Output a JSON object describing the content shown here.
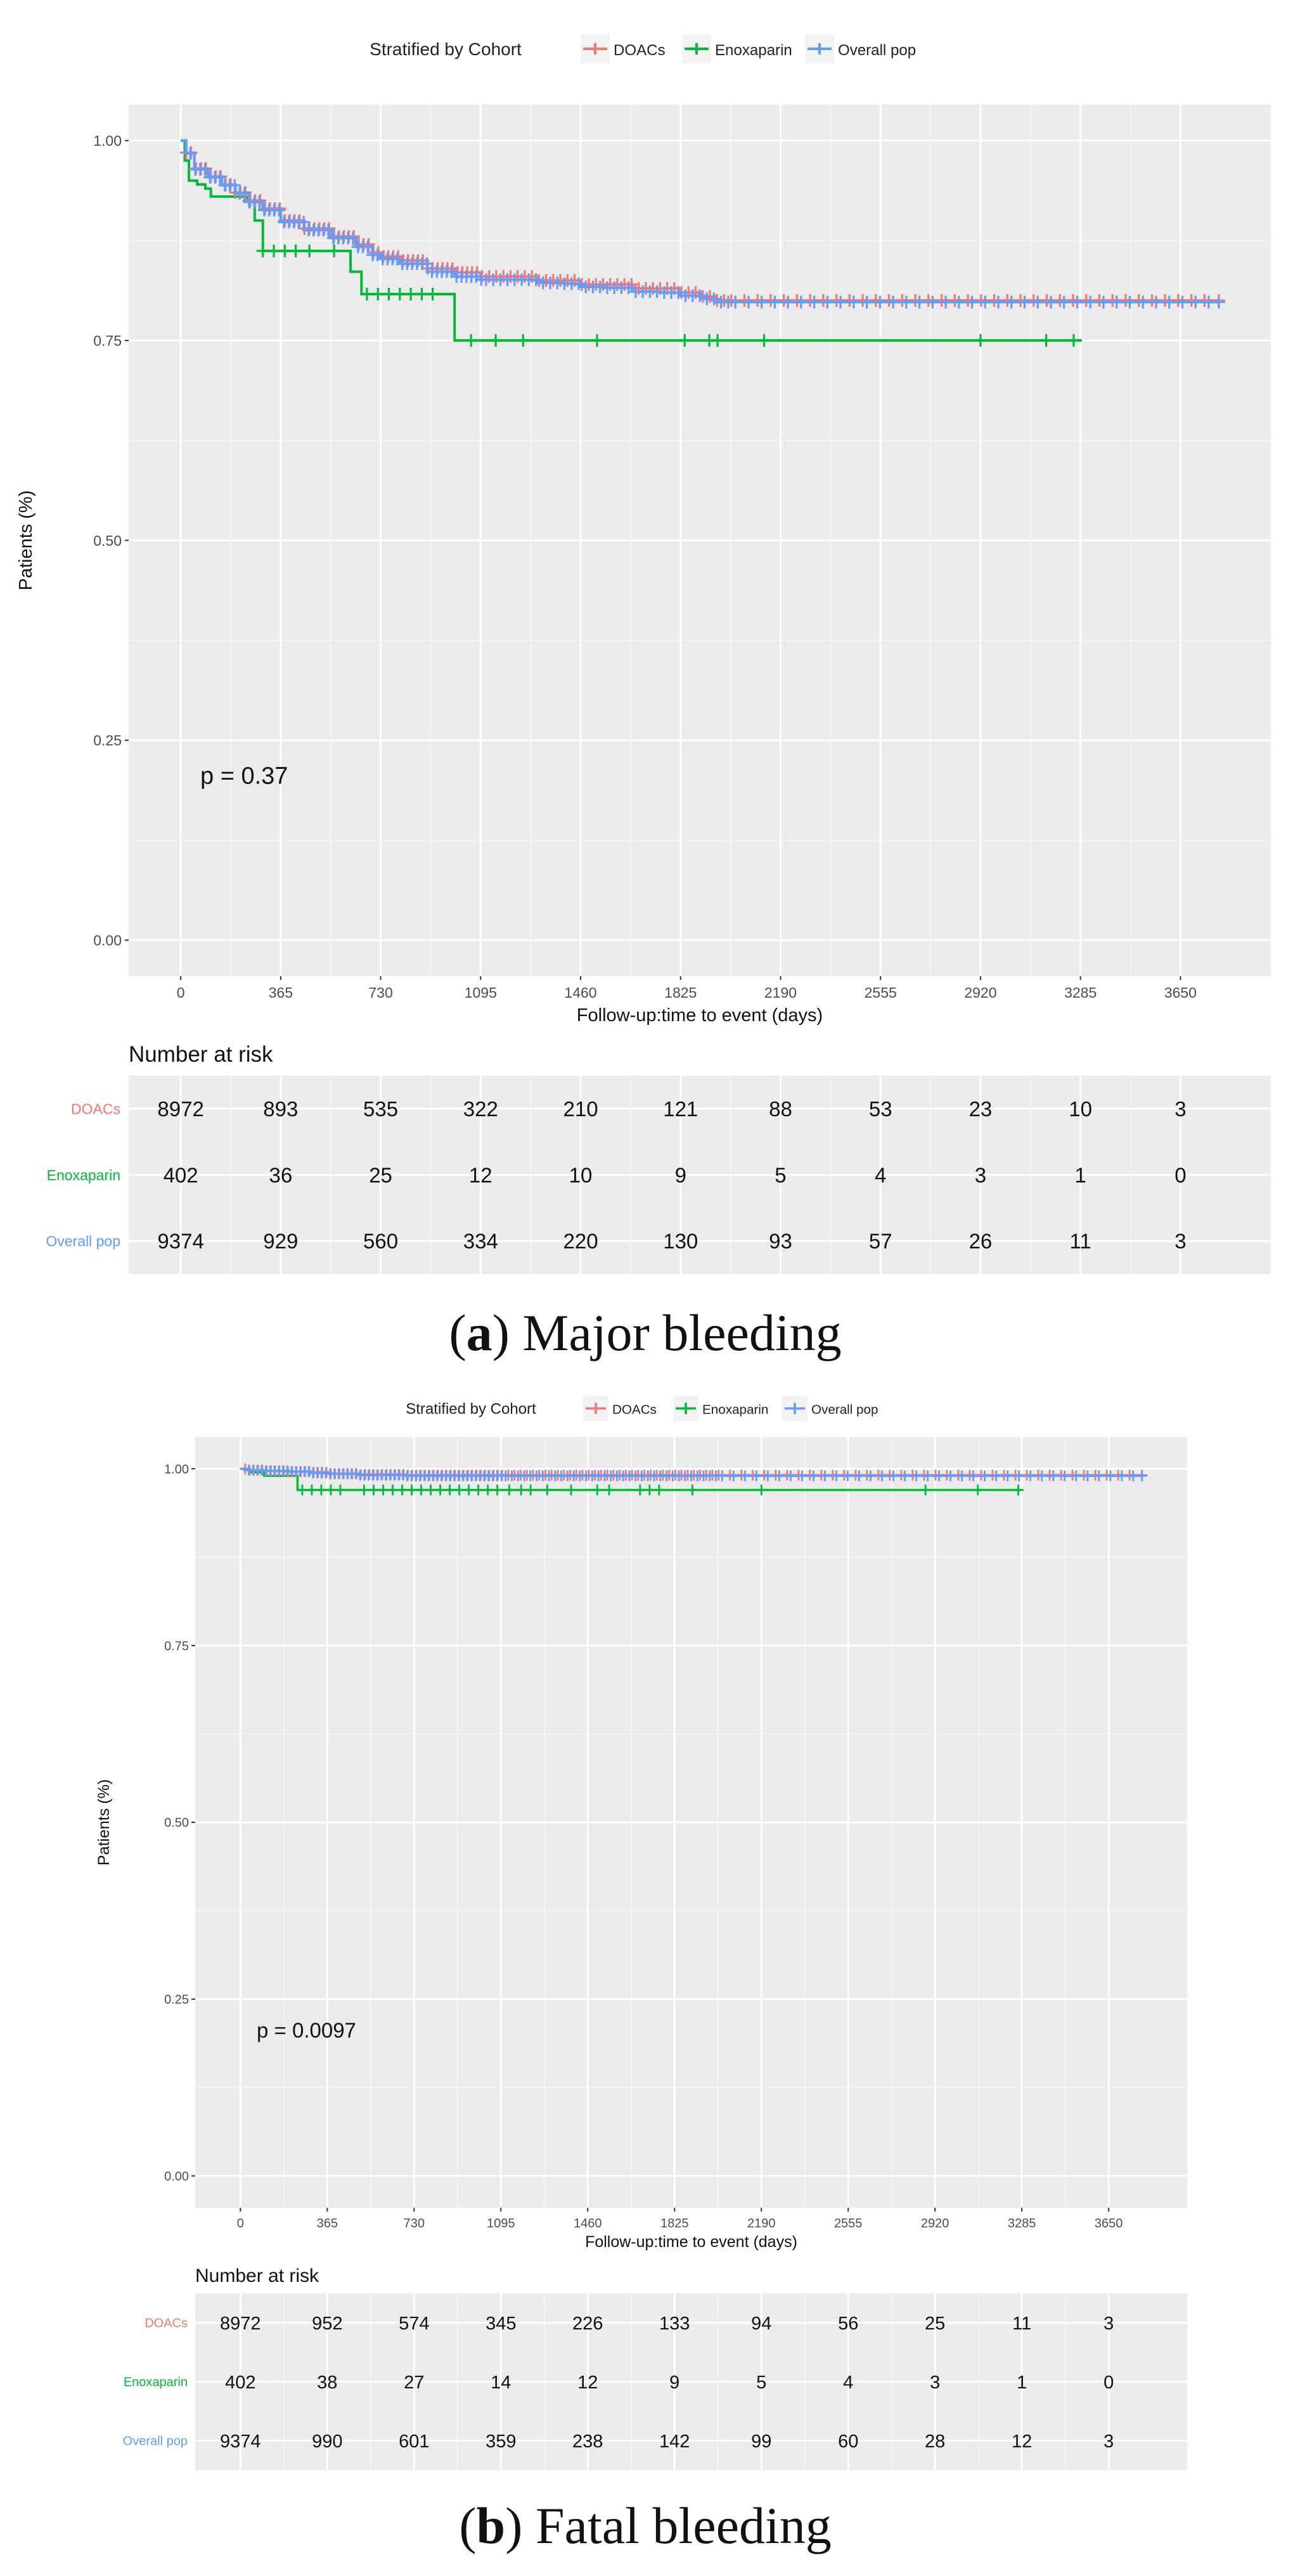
{
  "chart_data": [
    {
      "panel": "a",
      "type": "line",
      "legend_title": "Stratified by Cohort",
      "legend_placement": "top",
      "series": [
        {
          "name": "DOACs",
          "color": "#F8766D",
          "x": [
            0,
            20,
            50,
            100,
            150,
            200,
            250,
            300,
            365,
            450,
            550,
            640,
            700,
            730,
            800,
            900,
            1000,
            1095,
            1200,
            1300,
            1400,
            1460,
            1550,
            1650,
            1750,
            1825,
            1900,
            1950,
            2000,
            2190,
            2555,
            2920,
            3285,
            3650,
            3790
          ],
          "y": [
            1.0,
            0.985,
            0.965,
            0.955,
            0.945,
            0.935,
            0.925,
            0.915,
            0.9,
            0.89,
            0.88,
            0.87,
            0.86,
            0.855,
            0.85,
            0.84,
            0.835,
            0.83,
            0.83,
            0.825,
            0.825,
            0.82,
            0.82,
            0.815,
            0.815,
            0.81,
            0.805,
            0.8,
            0.8,
            0.8,
            0.8,
            0.8,
            0.8,
            0.8,
            0.8
          ]
        },
        {
          "name": "Enoxaparin",
          "color": "#00BA38",
          "x": [
            0,
            15,
            30,
            60,
            90,
            110,
            240,
            270,
            300,
            620,
            660,
            1000,
            3290
          ],
          "y": [
            1.0,
            0.975,
            0.95,
            0.945,
            0.94,
            0.93,
            0.925,
            0.9,
            0.862,
            0.836,
            0.808,
            0.75,
            0.75
          ]
        },
        {
          "name": "Overall pop",
          "color": "#619CFF",
          "x": [
            0,
            20,
            50,
            100,
            150,
            200,
            250,
            300,
            365,
            450,
            550,
            640,
            700,
            730,
            800,
            900,
            1000,
            1095,
            1200,
            1300,
            1400,
            1460,
            1550,
            1650,
            1750,
            1825,
            1900,
            1950,
            2000,
            2190,
            2555,
            2920,
            3285,
            3650,
            3790
          ],
          "y": [
            1.0,
            0.984,
            0.964,
            0.954,
            0.944,
            0.934,
            0.923,
            0.913,
            0.898,
            0.888,
            0.878,
            0.867,
            0.857,
            0.852,
            0.846,
            0.836,
            0.83,
            0.826,
            0.826,
            0.822,
            0.821,
            0.817,
            0.816,
            0.811,
            0.81,
            0.806,
            0.802,
            0.798,
            0.798,
            0.798,
            0.798,
            0.798,
            0.798,
            0.798,
            0.798
          ]
        }
      ],
      "censor_enoxaparin_x": [
        250,
        300,
        340,
        380,
        420,
        470,
        560,
        680,
        720,
        760,
        800,
        840,
        880,
        920,
        1060,
        1150,
        1250,
        1520,
        1840,
        1930,
        1960,
        2130,
        2920,
        3160,
        3260
      ],
      "xlabel": "Follow-up:time to event (days)",
      "ylabel": "Patients (%)",
      "xticks": [
        "0",
        "365",
        "730",
        "1095",
        "1460",
        "1825",
        "2190",
        "2555",
        "2920",
        "3285",
        "3650"
      ],
      "yticks": [
        "0.00",
        "0.25",
        "0.50",
        "0.75",
        "1.00"
      ],
      "xlim": [
        -190,
        3980
      ],
      "ylim": [
        -0.045,
        1.045
      ],
      "grid": true,
      "p_value": "p = 0.37",
      "risk_table": {
        "title": "Number at risk",
        "rows": [
          {
            "label": "DOACs",
            "color": "#F8766D",
            "values": [
              "8972",
              "893",
              "535",
              "322",
              "210",
              "121",
              "88",
              "53",
              "23",
              "10",
              "3"
            ]
          },
          {
            "label": "Enoxaparin",
            "color": "#00BA38",
            "values": [
              "402",
              "36",
              "25",
              "12",
              "10",
              "9",
              "5",
              "4",
              "3",
              "1",
              "0"
            ]
          },
          {
            "label": "Overall pop",
            "color": "#619CFF",
            "values": [
              "9374",
              "929",
              "560",
              "334",
              "220",
              "130",
              "93",
              "57",
              "26",
              "11",
              "3"
            ]
          }
        ]
      },
      "caption": {
        "open": "(",
        "bold": "a",
        "rest": ") Major bleeding"
      }
    },
    {
      "panel": "b",
      "type": "line",
      "legend_title": "Stratified by Cohort",
      "legend_placement": "top",
      "series": [
        {
          "name": "DOACs",
          "color": "#F8766D",
          "x": [
            0,
            30,
            100,
            200,
            300,
            365,
            500,
            700,
            1000,
            1500,
            2000,
            2500,
            3000,
            3500,
            3790
          ],
          "y": [
            1.0,
            0.998,
            0.997,
            0.996,
            0.995,
            0.993,
            0.992,
            0.991,
            0.991,
            0.991,
            0.991,
            0.991,
            0.991,
            0.991,
            0.991
          ]
        },
        {
          "name": "Enoxaparin",
          "color": "#00BA38",
          "x": [
            0,
            40,
            100,
            240,
            3280
          ],
          "y": [
            1.0,
            0.995,
            0.99,
            0.97,
            0.97
          ]
        },
        {
          "name": "Overall pop",
          "color": "#619CFF",
          "x": [
            0,
            30,
            100,
            200,
            300,
            365,
            500,
            700,
            1000,
            1500,
            2000,
            2500,
            3000,
            3500,
            3790
          ],
          "y": [
            1.0,
            0.998,
            0.997,
            0.996,
            0.994,
            0.993,
            0.991,
            0.99,
            0.99,
            0.99,
            0.99,
            0.99,
            0.99,
            0.99,
            0.99
          ]
        }
      ],
      "censor_enoxaparin_x": [
        260,
        300,
        340,
        380,
        420,
        520,
        560,
        600,
        640,
        680,
        720,
        760,
        800,
        840,
        880,
        920,
        960,
        1000,
        1040,
        1080,
        1130,
        1180,
        1220,
        1290,
        1390,
        1500,
        1550,
        1680,
        1720,
        1760,
        1900,
        2190,
        2880,
        3100,
        3270
      ],
      "xlabel": "Follow-up:time to event (days)",
      "ylabel": "Patients (%)",
      "xticks": [
        "0",
        "365",
        "730",
        "1095",
        "1460",
        "1825",
        "2190",
        "2555",
        "2920",
        "3285",
        "3650"
      ],
      "yticks": [
        "0.00",
        "0.25",
        "0.50",
        "0.75",
        "1.00"
      ],
      "xlim": [
        -190,
        3980
      ],
      "ylim": [
        -0.045,
        1.045
      ],
      "grid": true,
      "p_value": "p = 0.0097",
      "risk_table": {
        "title": "Number at risk",
        "rows": [
          {
            "label": "DOACs",
            "color": "#F8766D",
            "values": [
              "8972",
              "952",
              "574",
              "345",
              "226",
              "133",
              "94",
              "56",
              "25",
              "11",
              "3"
            ]
          },
          {
            "label": "Enoxaparin",
            "color": "#00BA38",
            "values": [
              "402",
              "38",
              "27",
              "14",
              "12",
              "9",
              "5",
              "4",
              "3",
              "1",
              "0"
            ]
          },
          {
            "label": "Overall pop",
            "color": "#619CFF",
            "values": [
              "9374",
              "990",
              "601",
              "359",
              "238",
              "142",
              "99",
              "60",
              "28",
              "12",
              "3"
            ]
          }
        ]
      },
      "caption": {
        "open": "(",
        "bold": "b",
        "rest": ") Fatal bleeding"
      }
    }
  ]
}
